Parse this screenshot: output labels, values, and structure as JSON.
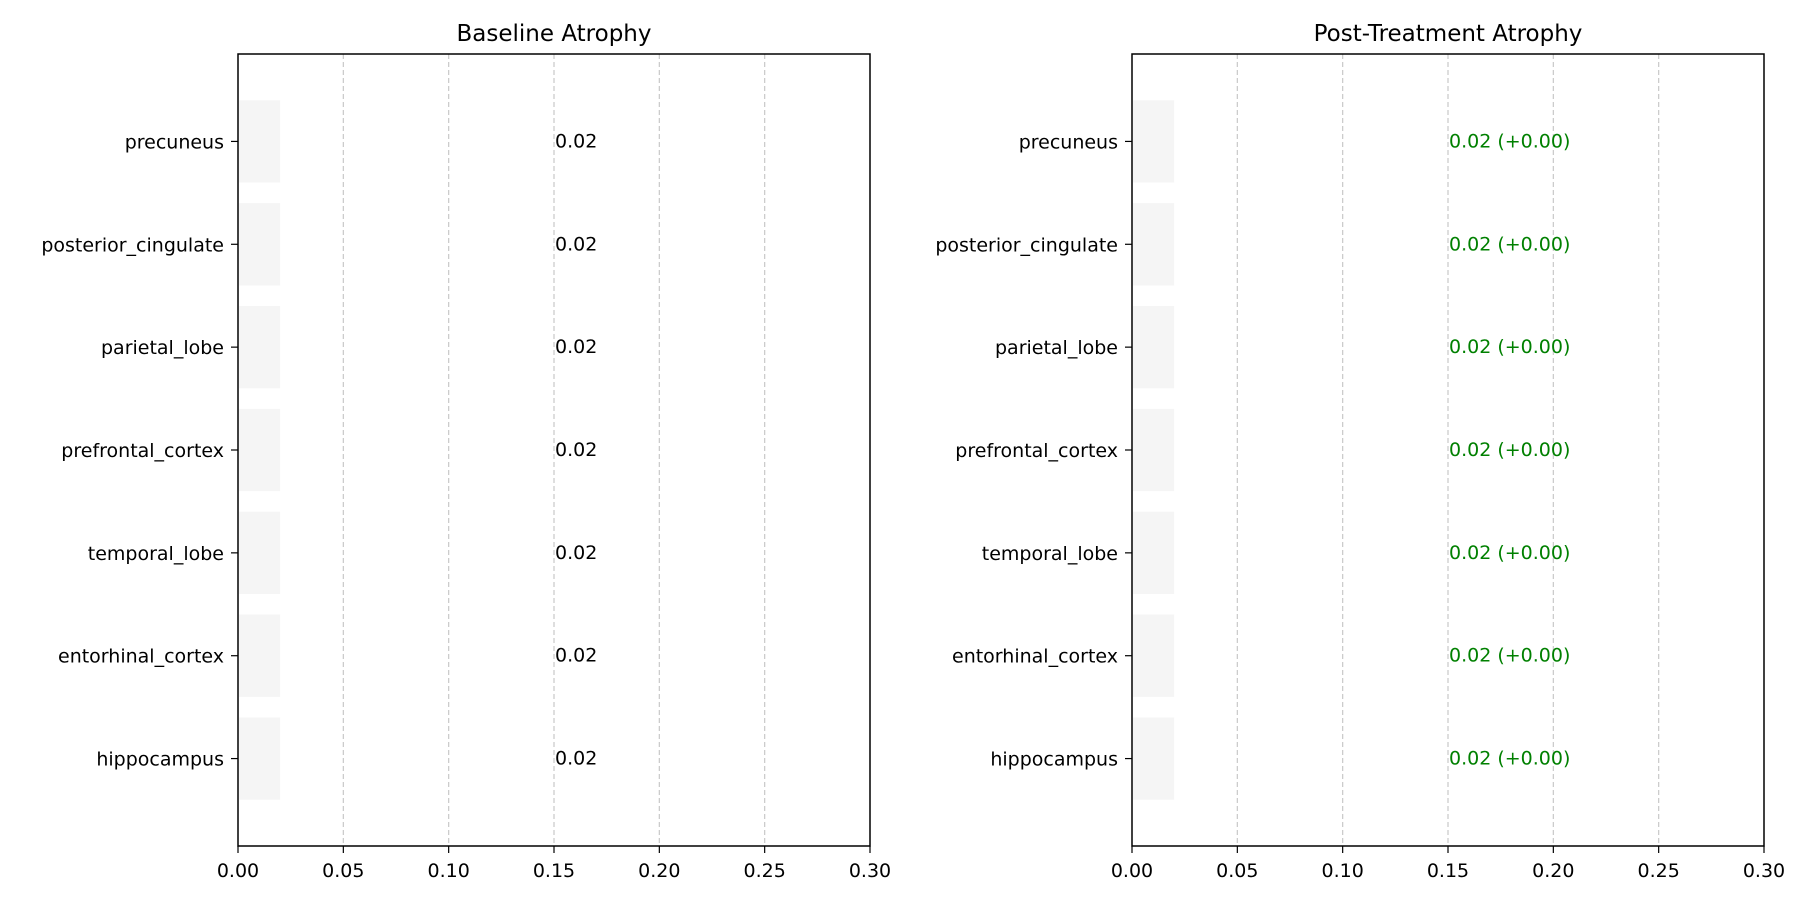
{
  "chart_data": [
    {
      "type": "bar",
      "orientation": "horizontal",
      "title": "Baseline Atrophy",
      "xlabel": "",
      "ylabel": "",
      "xlim": [
        0,
        0.3
      ],
      "xticks": [
        "0.00",
        "0.05",
        "0.10",
        "0.15",
        "0.20",
        "0.25",
        "0.30"
      ],
      "xtick_values": [
        0,
        0.05,
        0.1,
        0.15,
        0.2,
        0.25,
        0.3
      ],
      "grid": "x-dashed",
      "categories": [
        "precuneus",
        "posterior_cingulate",
        "parietal_lobe",
        "prefrontal_cortex",
        "temporal_lobe",
        "entorhinal_cortex",
        "hippocampus"
      ],
      "values": [
        0.02,
        0.02,
        0.02,
        0.02,
        0.02,
        0.02,
        0.02
      ],
      "data_labels": [
        "0.02",
        "0.02",
        "0.02",
        "0.02",
        "0.02",
        "0.02",
        "0.02"
      ],
      "label_x": 0.15,
      "bar_color": "#f5f5f5",
      "label_color": "#000000"
    },
    {
      "type": "bar",
      "orientation": "horizontal",
      "title": "Post-Treatment Atrophy",
      "xlabel": "",
      "ylabel": "",
      "xlim": [
        0,
        0.3
      ],
      "xticks": [
        "0.00",
        "0.05",
        "0.10",
        "0.15",
        "0.20",
        "0.25",
        "0.30"
      ],
      "xtick_values": [
        0,
        0.05,
        0.1,
        0.15,
        0.2,
        0.25,
        0.3
      ],
      "grid": "x-dashed",
      "categories": [
        "precuneus",
        "posterior_cingulate",
        "parietal_lobe",
        "prefrontal_cortex",
        "temporal_lobe",
        "entorhinal_cortex",
        "hippocampus"
      ],
      "values": [
        0.02,
        0.02,
        0.02,
        0.02,
        0.02,
        0.02,
        0.02
      ],
      "data_labels": [
        "0.02 (+0.00)",
        "0.02 (+0.00)",
        "0.02 (+0.00)",
        "0.02 (+0.00)",
        "0.02 (+0.00)",
        "0.02 (+0.00)",
        "0.02 (+0.00)"
      ],
      "label_x": 0.15,
      "bar_color": "#f5f5f5",
      "label_color": "#008000"
    }
  ]
}
